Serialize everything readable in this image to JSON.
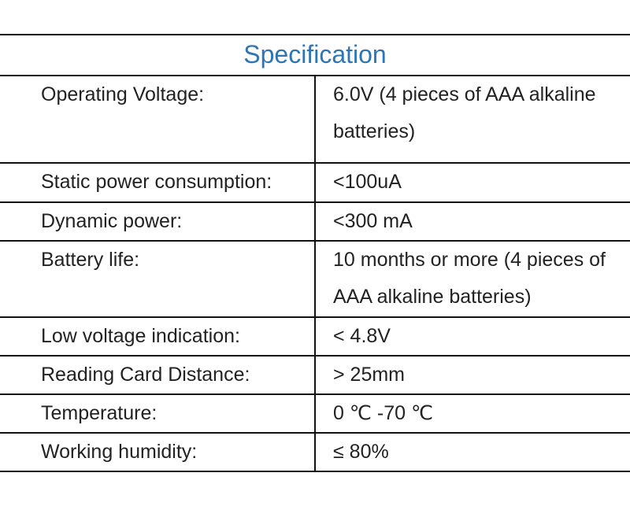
{
  "table": {
    "title": "Specification",
    "rows": [
      [
        "Operating Voltage:",
        "6.0V (4 pieces of AAA alkaline batteries)"
      ],
      [
        "Static power consumption:",
        "<100uA"
      ],
      [
        "Dynamic power:",
        "<300 mA"
      ],
      [
        "Battery life:",
        "10 months or more (4 pieces of AAA alkaline batteries)"
      ],
      [
        "Low voltage indication:",
        "< 4.8V"
      ],
      [
        "Reading Card Distance:",
        "> 25mm"
      ],
      [
        "Temperature:",
        "0 ℃ -70 ℃"
      ],
      [
        "Working humidity:",
        "≤ 80%"
      ]
    ]
  }
}
